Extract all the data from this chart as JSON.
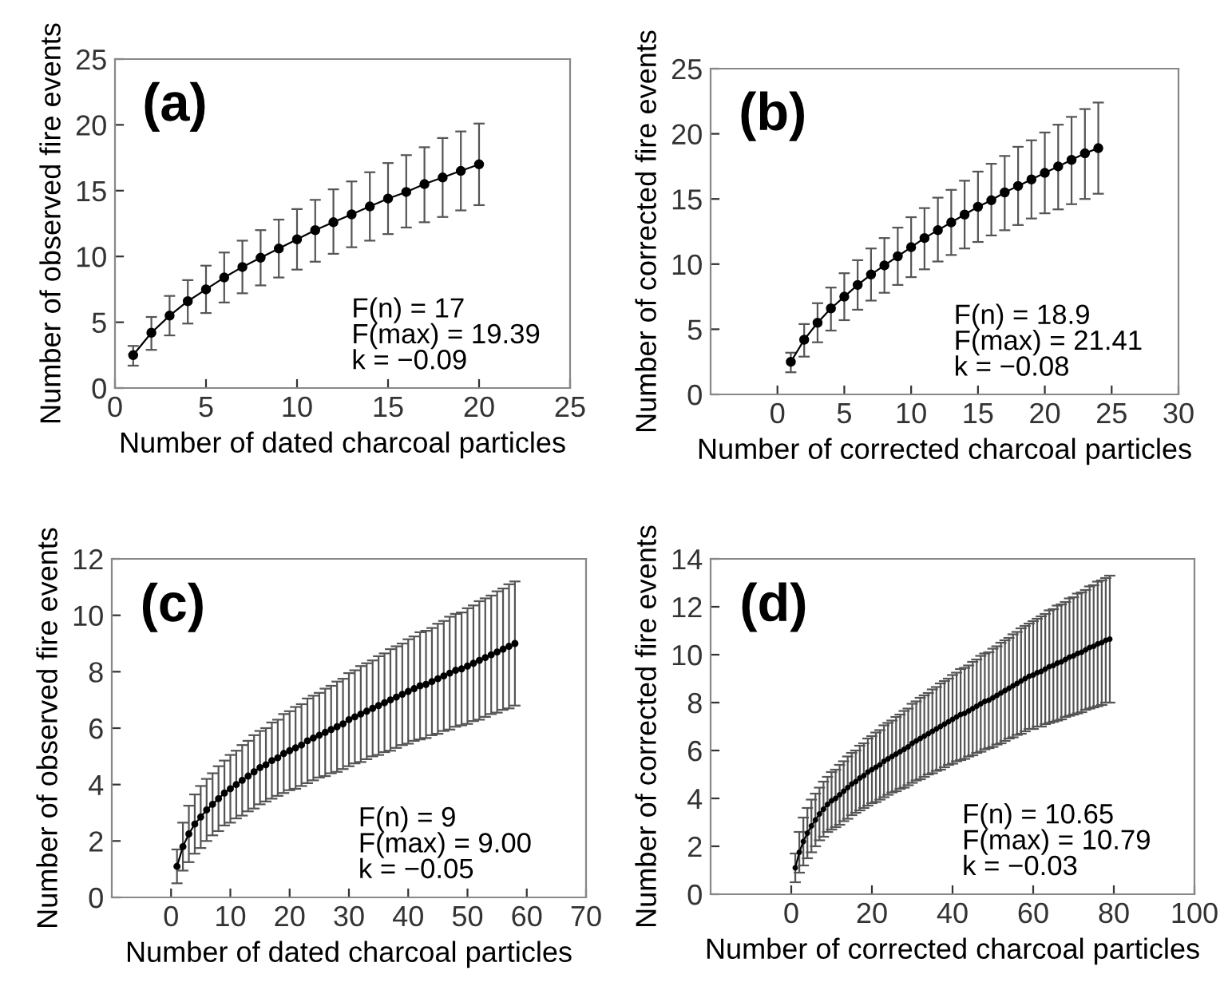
{
  "chart_data": [
    {
      "type": "line",
      "xlabel": "Number of dated charcoal particles",
      "ylabel": "Number of observed fire events",
      "xlim": [
        0,
        25
      ],
      "xticks": [
        0,
        5,
        10,
        15,
        20,
        25
      ],
      "ylim": [
        0,
        25
      ],
      "yticks": [
        0,
        5,
        10,
        15,
        20,
        25
      ],
      "marker": "circle",
      "line_style": "solid",
      "grid": false,
      "annotations": [
        "(a)",
        "F(n) = 17",
        "F(max) = 19.39",
        "k = −0.09"
      ],
      "series": [
        {
          "color": "#000000",
          "x": [
            1,
            2,
            3,
            4,
            5,
            6,
            7,
            8,
            9,
            10,
            11,
            12,
            13,
            14,
            15,
            16,
            17,
            18,
            19,
            20
          ],
          "values": [
            2.5,
            4.2,
            5.5,
            6.6,
            7.5,
            8.4,
            9.2,
            9.9,
            10.6,
            11.3,
            12.0,
            12.6,
            13.2,
            13.8,
            14.4,
            14.9,
            15.5,
            16.0,
            16.5,
            17.0
          ],
          "errors": [
            [
              1.7,
              3.2
            ],
            [
              2.9,
              5.4
            ],
            [
              4.0,
              7.0
            ],
            [
              4.9,
              8.2
            ],
            [
              5.7,
              9.3
            ],
            [
              6.5,
              10.3
            ],
            [
              7.2,
              11.2
            ],
            [
              7.8,
              12.0
            ],
            [
              8.4,
              12.8
            ],
            [
              9.0,
              13.6
            ],
            [
              9.6,
              14.3
            ],
            [
              10.2,
              15.1
            ],
            [
              10.7,
              15.7
            ],
            [
              11.2,
              16.4
            ],
            [
              11.7,
              17.1
            ],
            [
              12.2,
              17.7
            ],
            [
              12.6,
              18.3
            ],
            [
              13.0,
              19.0
            ],
            [
              13.5,
              19.5
            ],
            [
              13.9,
              20.1
            ]
          ]
        }
      ]
    },
    {
      "type": "line",
      "xlabel": "Number of corrected charcoal particles",
      "ylabel": "Number of corrected fire events",
      "xlim": [
        -5,
        30
      ],
      "xticks": [
        0,
        5,
        10,
        15,
        20,
        25,
        30
      ],
      "ylim": [
        0,
        25
      ],
      "yticks": [
        0,
        5,
        10,
        15,
        20,
        25
      ],
      "marker": "circle",
      "line_style": "solid",
      "grid": false,
      "annotations": [
        "(b)",
        "F(n) = 18.9",
        "F(max) = 21.41",
        "k = −0.08"
      ],
      "series": [
        {
          "color": "#000000",
          "x": [
            1,
            2,
            3,
            4,
            5,
            6,
            7,
            8,
            9,
            10,
            11,
            12,
            13,
            14,
            15,
            16,
            17,
            18,
            19,
            20,
            21,
            22,
            23,
            24
          ],
          "values": [
            2.5,
            4.2,
            5.5,
            6.6,
            7.5,
            8.4,
            9.2,
            9.9,
            10.6,
            11.3,
            12.0,
            12.6,
            13.2,
            13.8,
            14.4,
            14.9,
            15.5,
            16.0,
            16.5,
            17.0,
            17.5,
            18.0,
            18.5,
            18.9
          ],
          "errors": [
            [
              1.7,
              3.2
            ],
            [
              2.9,
              5.4
            ],
            [
              4.0,
              7.0
            ],
            [
              4.9,
              8.2
            ],
            [
              5.7,
              9.3
            ],
            [
              6.5,
              10.3
            ],
            [
              7.2,
              11.2
            ],
            [
              7.8,
              12.0
            ],
            [
              8.4,
              12.8
            ],
            [
              9.0,
              13.6
            ],
            [
              9.6,
              14.3
            ],
            [
              10.2,
              15.1
            ],
            [
              10.7,
              15.7
            ],
            [
              11.2,
              16.4
            ],
            [
              11.7,
              17.1
            ],
            [
              12.2,
              17.7
            ],
            [
              12.6,
              18.3
            ],
            [
              13.0,
              19.0
            ],
            [
              13.5,
              19.5
            ],
            [
              13.9,
              20.1
            ],
            [
              14.2,
              20.7
            ],
            [
              14.6,
              21.3
            ],
            [
              15.0,
              21.9
            ],
            [
              15.4,
              22.4
            ]
          ]
        }
      ]
    },
    {
      "type": "line",
      "xlabel": "Number of dated charcoal particles",
      "ylabel": "Number of observed fire events",
      "xlim": [
        -10,
        70
      ],
      "xticks": [
        0,
        10,
        20,
        30,
        40,
        50,
        60,
        70
      ],
      "ylim": [
        0,
        12
      ],
      "yticks": [
        0,
        2,
        4,
        6,
        8,
        10,
        12
      ],
      "marker": "circle",
      "line_style": "solid",
      "grid": false,
      "annotations": [
        "(c)",
        "F(n) = 9",
        "F(max) = 9.00",
        "k = −0.05"
      ],
      "series": [
        {
          "color": "#000000",
          "x": [
            1,
            2,
            3,
            4,
            5,
            6,
            7,
            8,
            9,
            10,
            11,
            12,
            13,
            14,
            15,
            16,
            17,
            18,
            19,
            20,
            21,
            22,
            23,
            24,
            25,
            26,
            27,
            28,
            29,
            30,
            31,
            32,
            33,
            34,
            35,
            36,
            37,
            38,
            39,
            40,
            41,
            42,
            43,
            44,
            45,
            46,
            47,
            48,
            49,
            50,
            51,
            52,
            53,
            54,
            55,
            56,
            57,
            58
          ],
          "values": [
            1.1,
            1.8,
            2.25,
            2.6,
            2.85,
            3.1,
            3.3,
            3.5,
            3.7,
            3.85,
            4.0,
            4.15,
            4.3,
            4.45,
            4.6,
            4.7,
            4.85,
            4.95,
            5.1,
            5.2,
            5.3,
            5.4,
            5.55,
            5.65,
            5.75,
            5.85,
            5.95,
            6.05,
            6.15,
            6.3,
            6.4,
            6.5,
            6.6,
            6.7,
            6.8,
            6.9,
            7.0,
            7.1,
            7.2,
            7.3,
            7.4,
            7.5,
            7.55,
            7.65,
            7.75,
            7.85,
            7.95,
            8.05,
            8.1,
            8.2,
            8.3,
            8.4,
            8.5,
            8.6,
            8.7,
            8.8,
            8.9,
            9.0
          ],
          "errors": [
            0.6,
            0.85,
            1.0,
            1.05,
            1.1,
            1.1,
            1.1,
            1.15,
            1.15,
            1.2,
            1.2,
            1.25,
            1.25,
            1.3,
            1.3,
            1.3,
            1.35,
            1.35,
            1.4,
            1.4,
            1.45,
            1.45,
            1.5,
            1.5,
            1.5,
            1.55,
            1.55,
            1.6,
            1.6,
            1.65,
            1.65,
            1.7,
            1.7,
            1.7,
            1.75,
            1.75,
            1.8,
            1.8,
            1.8,
            1.85,
            1.85,
            1.9,
            1.9,
            1.9,
            1.95,
            1.95,
            2.0,
            2.0,
            2.0,
            2.05,
            2.05,
            2.1,
            2.1,
            2.1,
            2.15,
            2.15,
            2.2,
            2.2
          ]
        }
      ]
    },
    {
      "type": "line",
      "xlabel": "Number of corrected charcoal particles",
      "ylabel": "Number of corrected fire events",
      "xlim": [
        -20,
        100
      ],
      "xticks": [
        0,
        20,
        40,
        60,
        80,
        100
      ],
      "ylim": [
        0,
        14
      ],
      "yticks": [
        0,
        2,
        4,
        6,
        8,
        10,
        12,
        14
      ],
      "marker": "circle",
      "line_style": "solid",
      "grid": false,
      "annotations": [
        "(d)",
        "F(n) = 10.65",
        "F(max) = 10.79",
        "k = −0.03"
      ],
      "series": [
        {
          "color": "#000000",
          "x": [
            1,
            2,
            3,
            4,
            5,
            6,
            7,
            8,
            9,
            10,
            11,
            12,
            13,
            14,
            15,
            16,
            17,
            18,
            19,
            20,
            21,
            22,
            23,
            24,
            25,
            26,
            27,
            28,
            29,
            30,
            31,
            32,
            33,
            34,
            35,
            36,
            37,
            38,
            39,
            40,
            41,
            42,
            43,
            44,
            45,
            46,
            47,
            48,
            49,
            50,
            51,
            52,
            53,
            54,
            55,
            56,
            57,
            58,
            59,
            60,
            61,
            62,
            63,
            64,
            65,
            66,
            67,
            68,
            69,
            70,
            71,
            72,
            73,
            74,
            75,
            76,
            77,
            78,
            79
          ],
          "values": [
            1.1,
            1.75,
            2.2,
            2.55,
            2.85,
            3.1,
            3.35,
            3.55,
            3.75,
            3.9,
            4.0,
            4.15,
            4.3,
            4.45,
            4.6,
            4.7,
            4.85,
            4.95,
            5.1,
            5.2,
            5.3,
            5.4,
            5.55,
            5.65,
            5.75,
            5.85,
            5.95,
            6.05,
            6.15,
            6.3,
            6.4,
            6.5,
            6.6,
            6.7,
            6.8,
            6.9,
            7.0,
            7.1,
            7.2,
            7.3,
            7.4,
            7.5,
            7.55,
            7.65,
            7.75,
            7.85,
            7.95,
            8.05,
            8.1,
            8.2,
            8.3,
            8.4,
            8.5,
            8.6,
            8.7,
            8.8,
            8.9,
            9.0,
            9.1,
            9.15,
            9.25,
            9.3,
            9.4,
            9.5,
            9.55,
            9.65,
            9.7,
            9.8,
            9.9,
            9.95,
            10.05,
            10.1,
            10.2,
            10.3,
            10.35,
            10.45,
            10.5,
            10.6,
            10.65
          ],
          "errors": [
            0.6,
            0.85,
            1.0,
            1.05,
            1.1,
            1.1,
            1.1,
            1.15,
            1.15,
            1.2,
            1.2,
            1.25,
            1.25,
            1.3,
            1.3,
            1.3,
            1.35,
            1.35,
            1.4,
            1.4,
            1.45,
            1.45,
            1.5,
            1.5,
            1.5,
            1.55,
            1.55,
            1.6,
            1.6,
            1.65,
            1.65,
            1.7,
            1.7,
            1.7,
            1.75,
            1.75,
            1.8,
            1.8,
            1.8,
            1.85,
            1.85,
            1.9,
            1.9,
            1.9,
            1.95,
            1.95,
            2.0,
            2.0,
            2.0,
            2.05,
            2.05,
            2.1,
            2.1,
            2.1,
            2.15,
            2.15,
            2.2,
            2.2,
            2.2,
            2.25,
            2.25,
            2.3,
            2.3,
            2.35,
            2.35,
            2.4,
            2.4,
            2.4,
            2.45,
            2.45,
            2.5,
            2.5,
            2.5,
            2.55,
            2.55,
            2.6,
            2.6,
            2.6,
            2.65
          ]
        }
      ]
    }
  ]
}
